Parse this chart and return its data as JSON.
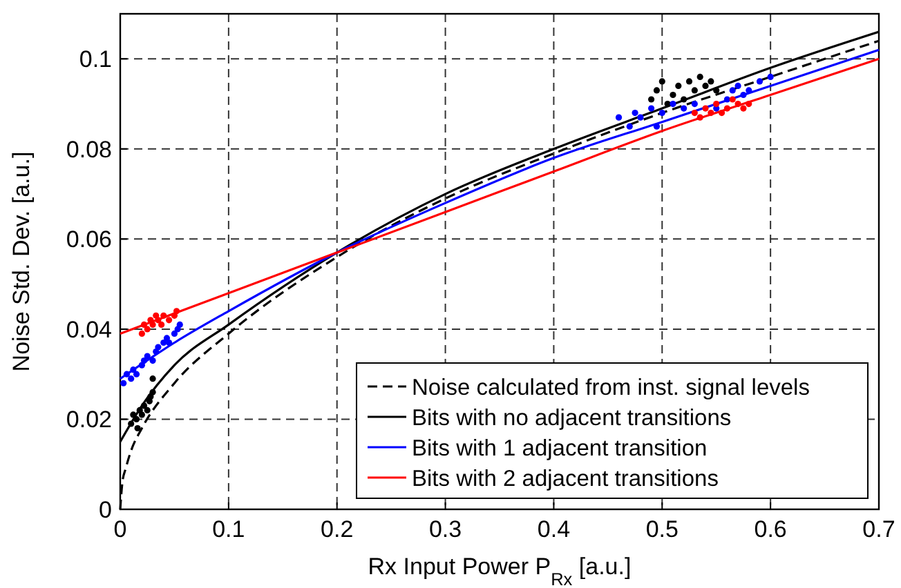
{
  "chart_data": {
    "type": "line",
    "xlabel": "Rx Input Power P$_{Rx}$ [a.u.]",
    "ylabel": "Noise Std. Dev. [a.u.]",
    "xlim": [
      0,
      0.7
    ],
    "ylim": [
      0,
      0.11
    ],
    "xticks": [
      0,
      0.1,
      0.2,
      0.3,
      0.4,
      0.5,
      0.6,
      0.7
    ],
    "yticks": [
      0,
      0.02,
      0.04,
      0.06,
      0.08,
      0.1
    ],
    "grid": true,
    "legend": "bottom right",
    "marker": "none",
    "series": [
      {
        "name": "Noise calculated from inst. signal levels",
        "color": "#000000",
        "line_style": "dashed",
        "x": [
          0,
          0.002,
          0.005,
          0.01,
          0.02,
          0.05,
          0.1,
          0.2,
          0.3,
          0.4,
          0.5,
          0.6,
          0.7
        ],
        "values": [
          0,
          0.006,
          0.009,
          0.013,
          0.018,
          0.028,
          0.039,
          0.056,
          0.069,
          0.079,
          0.088,
          0.096,
          0.104
        ]
      },
      {
        "name": "Bits with no adjacent transitions",
        "color": "#000000",
        "line_style": "solid",
        "x": [
          0,
          0.02,
          0.05,
          0.1,
          0.2,
          0.3,
          0.4,
          0.5,
          0.6,
          0.7
        ],
        "values": [
          0.015,
          0.023,
          0.032,
          0.041,
          0.057,
          0.07,
          0.08,
          0.089,
          0.098,
          0.106
        ]
      },
      {
        "name": "Bits with 1 adjacent transition",
        "color": "#0000ff",
        "line_style": "solid",
        "x": [
          0,
          0.05,
          0.1,
          0.2,
          0.3,
          0.4,
          0.5,
          0.6,
          0.7
        ],
        "values": [
          0.029,
          0.037,
          0.044,
          0.057,
          0.068,
          0.078,
          0.086,
          0.094,
          0.102
        ]
      },
      {
        "name": "Bits with 2 adjacent transitions",
        "color": "#ff0000",
        "line_style": "solid",
        "x": [
          0,
          0.1,
          0.2,
          0.3,
          0.4,
          0.5,
          0.6,
          0.7
        ],
        "values": [
          0.039,
          0.048,
          0.057,
          0.066,
          0.075,
          0.084,
          0.092,
          0.1
        ]
      },
      {
        "type": "scatter",
        "marker": "circle",
        "color": "#000000",
        "x": [
          0.01,
          0.012,
          0.015,
          0.018,
          0.02,
          0.022,
          0.025,
          0.027,
          0.03,
          0.03,
          0.028,
          0.016
        ],
        "values": [
          0.019,
          0.021,
          0.02,
          0.022,
          0.021,
          0.023,
          0.022,
          0.024,
          0.026,
          0.029,
          0.025,
          0.018
        ]
      },
      {
        "type": "scatter",
        "marker": "circle",
        "color": "#000000",
        "x": [
          0.49,
          0.495,
          0.5,
          0.505,
          0.51,
          0.515,
          0.52,
          0.525,
          0.53,
          0.535,
          0.54,
          0.545,
          0.55
        ],
        "values": [
          0.091,
          0.093,
          0.095,
          0.09,
          0.092,
          0.094,
          0.091,
          0.095,
          0.093,
          0.096,
          0.094,
          0.095,
          0.093
        ]
      },
      {
        "type": "scatter",
        "marker": "circle",
        "color": "#0000ff",
        "x": [
          0.003,
          0.006,
          0.01,
          0.012,
          0.015,
          0.02,
          0.022,
          0.025,
          0.03,
          0.033,
          0.035,
          0.04,
          0.043,
          0.045,
          0.05,
          0.053,
          0.055
        ],
        "values": [
          0.028,
          0.03,
          0.029,
          0.031,
          0.03,
          0.032,
          0.033,
          0.034,
          0.033,
          0.035,
          0.036,
          0.037,
          0.038,
          0.037,
          0.039,
          0.04,
          0.041
        ]
      },
      {
        "type": "scatter",
        "marker": "circle",
        "color": "#0000ff",
        "x": [
          0.46,
          0.47,
          0.475,
          0.48,
          0.49,
          0.495,
          0.5,
          0.51,
          0.52,
          0.53,
          0.55,
          0.56,
          0.565,
          0.57,
          0.575,
          0.58,
          0.59,
          0.6
        ],
        "values": [
          0.087,
          0.085,
          0.088,
          0.087,
          0.089,
          0.085,
          0.088,
          0.09,
          0.089,
          0.09,
          0.089,
          0.091,
          0.093,
          0.094,
          0.092,
          0.093,
          0.095,
          0.096
        ]
      },
      {
        "type": "scatter",
        "marker": "circle",
        "color": "#ff0000",
        "x": [
          0.02,
          0.022,
          0.025,
          0.028,
          0.03,
          0.033,
          0.035,
          0.038,
          0.04,
          0.045,
          0.05,
          0.052
        ],
        "values": [
          0.039,
          0.041,
          0.04,
          0.042,
          0.041,
          0.043,
          0.042,
          0.041,
          0.043,
          0.042,
          0.043,
          0.044
        ]
      },
      {
        "type": "scatter",
        "marker": "circle",
        "color": "#ff0000",
        "x": [
          0.53,
          0.535,
          0.54,
          0.545,
          0.55,
          0.555,
          0.56,
          0.565,
          0.57,
          0.575,
          0.58
        ],
        "values": [
          0.088,
          0.087,
          0.089,
          0.088,
          0.09,
          0.088,
          0.089,
          0.091,
          0.09,
          0.089,
          0.09
        ]
      }
    ]
  }
}
